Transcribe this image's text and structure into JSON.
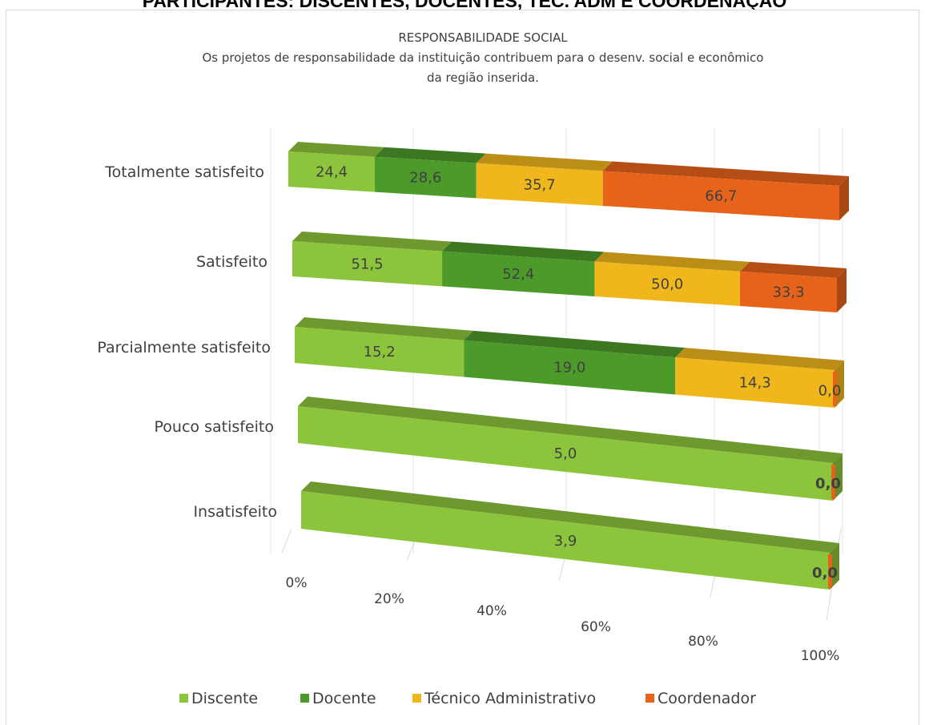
{
  "page_heading": "PARTICIPANTES: DISCENTES, DOCENTES, TÉC. ADM E COORDENAÇÃO",
  "chart_data": {
    "type": "bar",
    "orientation": "horizontal",
    "stacked": "percent",
    "title": "RESPONSABILIDADE SOCIAL",
    "subtitle_lines": [
      "Os projetos de responsabilidade da instituição contribuem para o desenv. social e econômico",
      "da região inserida."
    ],
    "categories": [
      "Totalmente satisfeito",
      "Satisfeito",
      "Parcialmente satisfeito",
      "Pouco satisfeito",
      "Insatisfeito"
    ],
    "series": [
      {
        "name": "Discente",
        "color": "#8cc43c",
        "values": [
          24.4,
          51.5,
          15.2,
          5.0,
          3.9
        ]
      },
      {
        "name": "Docente",
        "color": "#4c9a2a",
        "values": [
          28.6,
          52.4,
          19.0,
          0.0,
          0.0
        ]
      },
      {
        "name": "Técnico Administrativo",
        "color": "#f0b71c",
        "values": [
          35.7,
          50.0,
          14.3,
          0.0,
          0.0
        ]
      },
      {
        "name": "Coordenador",
        "color": "#e8631a",
        "values": [
          66.7,
          33.3,
          0.0,
          0.0,
          0.0
        ]
      }
    ],
    "data_labels": [
      [
        "24,4",
        "28,6",
        "35,7",
        "66,7"
      ],
      [
        "51,5",
        "52,4",
        "50,0",
        "33,3"
      ],
      [
        "15,2",
        "19,0",
        "14,3",
        "0,0"
      ],
      [
        "5,0",
        "",
        "",
        "0,0"
      ],
      [
        "3,9",
        "",
        "",
        "0,0"
      ]
    ],
    "x_ticks": [
      "0%",
      "20%",
      "40%",
      "60%",
      "80%",
      "100%"
    ],
    "xlim": [
      0,
      100
    ],
    "grid": true,
    "legend_position": "bottom",
    "style": "3d"
  }
}
